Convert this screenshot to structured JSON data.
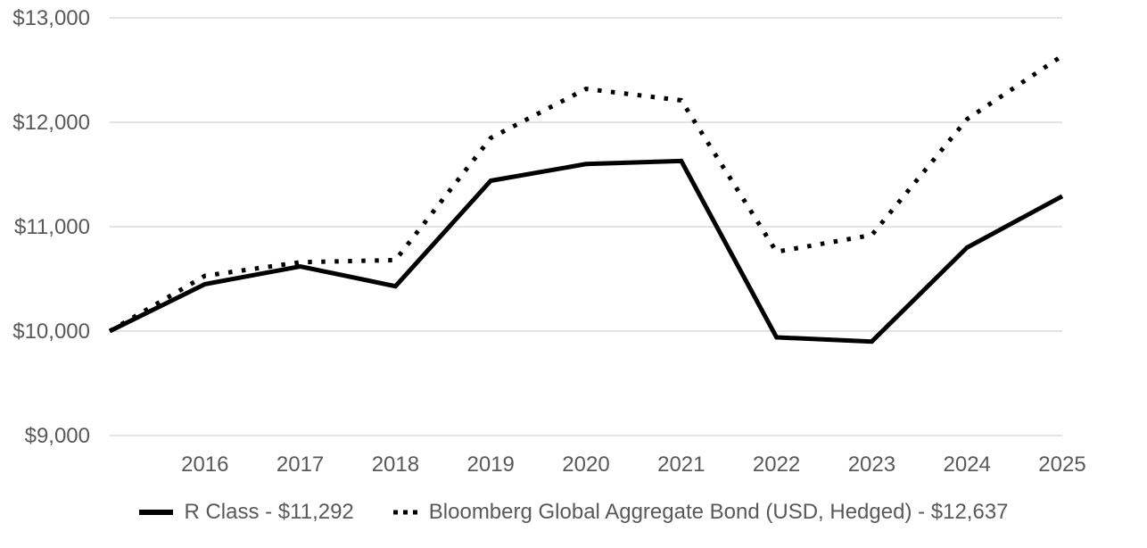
{
  "colors": {
    "series_line": "#000000",
    "axis_text": "#595959",
    "gridline": "#e3e3e3",
    "background": "#ffffff"
  },
  "chart_data": {
    "type": "line",
    "title": "",
    "x_tick_labels": [
      "2016",
      "2017",
      "2018",
      "2019",
      "2020",
      "2021",
      "2022",
      "2023",
      "2024",
      "2025"
    ],
    "y_tick_labels": [
      "$13,000",
      "$12,000",
      "$11,000",
      "$10,000",
      "$9,000"
    ],
    "y_tick_values": [
      13000,
      12000,
      11000,
      10000,
      9000
    ],
    "ylim": [
      9000,
      13000
    ],
    "grid": "horizontal-only",
    "legend_position": "bottom-center",
    "layout_note": "both series start one year-interval before the first labeled tick (2016) at $10,000; values per point are start,2016..2025",
    "series": [
      {
        "name": "R Class - $11,292",
        "line_style": "solid",
        "final_value": 11292,
        "values": [
          10000,
          10450,
          10620,
          10430,
          11440,
          11600,
          11630,
          9940,
          9900,
          10800,
          11292
        ]
      },
      {
        "name": "Bloomberg Global Aggregate Bond (USD, Hedged) - $12,637",
        "line_style": "dotted",
        "final_value": 12637,
        "values": [
          10000,
          10530,
          10660,
          10680,
          11850,
          12320,
          12210,
          10760,
          10920,
          12030,
          12637
        ]
      }
    ]
  }
}
